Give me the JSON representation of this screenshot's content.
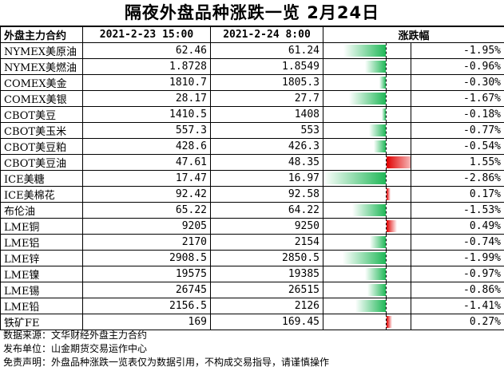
{
  "title": "隔夜外盘品种涨跌一览 2月24日",
  "headers": {
    "name": "外盘主力合约",
    "col_a": "2021-2-23 15:00",
    "col_b": "2021-2-24 8:00",
    "change": "涨跌幅"
  },
  "colors": {
    "negative": "#20b858",
    "positive": "#e00000"
  },
  "bar_scale_max_abs_percent": 2.86,
  "rows": [
    {
      "name": "NYMEX美原油",
      "a": "62.46",
      "b": "61.24",
      "pct": "-1.95%",
      "change": -1.95
    },
    {
      "name": "NYMEX美燃油",
      "a": "1.8728",
      "b": "1.8549",
      "pct": "-0.96%",
      "change": -0.96
    },
    {
      "name": "COMEX美金",
      "a": "1810.7",
      "b": "1805.3",
      "pct": "-0.30%",
      "change": -0.3
    },
    {
      "name": "COMEX美银",
      "a": "28.17",
      "b": "27.7",
      "pct": "-1.67%",
      "change": -1.67
    },
    {
      "name": "CBOT美豆",
      "a": "1410.5",
      "b": "1408",
      "pct": "-0.18%",
      "change": -0.18
    },
    {
      "name": "CBOT美玉米",
      "a": "557.3",
      "b": "553",
      "pct": "-0.77%",
      "change": -0.77
    },
    {
      "name": "CBOT美豆粕",
      "a": "428.6",
      "b": "426.3",
      "pct": "-0.54%",
      "change": -0.54
    },
    {
      "name": "CBOT美豆油",
      "a": "47.61",
      "b": "48.35",
      "pct": "1.55%",
      "change": 1.55
    },
    {
      "name": "ICE美糖",
      "a": "17.47",
      "b": "16.97",
      "pct": "-2.86%",
      "change": -2.86
    },
    {
      "name": "ICE美棉花",
      "a": "92.42",
      "b": "92.58",
      "pct": "0.17%",
      "change": 0.17
    },
    {
      "name": "布伦油",
      "a": "65.22",
      "b": "64.22",
      "pct": "-1.53%",
      "change": -1.53
    },
    {
      "name": "LME铜",
      "a": "9205",
      "b": "9250",
      "pct": "0.49%",
      "change": 0.49
    },
    {
      "name": "LME铝",
      "a": "2170",
      "b": "2154",
      "pct": "-0.74%",
      "change": -0.74
    },
    {
      "name": "LME锌",
      "a": "2908.5",
      "b": "2850.5",
      "pct": "-1.99%",
      "change": -1.99
    },
    {
      "name": "LME镍",
      "a": "19575",
      "b": "19385",
      "pct": "-0.97%",
      "change": -0.97
    },
    {
      "name": "LME锡",
      "a": "26745",
      "b": "26515",
      "pct": "-0.86%",
      "change": -0.86
    },
    {
      "name": "LME铅",
      "a": "2156.5",
      "b": "2126",
      "pct": "-1.41%",
      "change": -1.41
    },
    {
      "name": "铁矿FE",
      "a": "169",
      "b": "169.45",
      "pct": "0.27%",
      "change": 0.27
    }
  ],
  "footer": {
    "source": "数据来源：文华财经外盘主力合约",
    "publisher": "发布单位：山金期货交易运作中心",
    "disclaimer": "免责声明：外盘品种涨跌一览表仅为数据引用，不构成交易指导，请谨慎操作"
  }
}
